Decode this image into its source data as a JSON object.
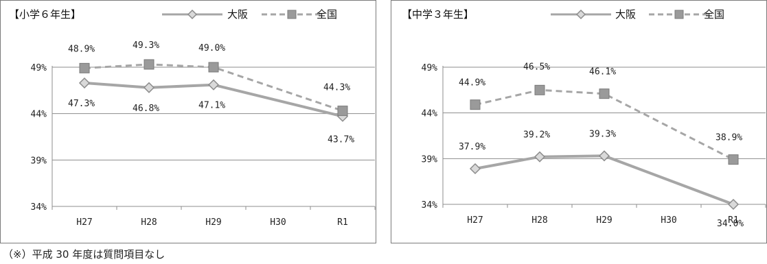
{
  "chart_data": [
    {
      "type": "line",
      "title": "【小学６年生】",
      "categories": [
        "H27",
        "H28",
        "H29",
        "H30",
        "R1"
      ],
      "yticks": [
        "49%",
        "44%",
        "39%",
        "34%"
      ],
      "ylim": [
        34,
        49
      ],
      "grid": true,
      "legend_position": "top-right",
      "series": [
        {
          "name": "大阪",
          "color": "#a6a6a6",
          "dash": "solid",
          "marker": "diamond",
          "values": [
            47.3,
            46.8,
            47.1,
            null,
            43.7
          ],
          "labels": [
            "47.3%",
            "46.8%",
            "47.1%",
            "",
            "43.7%"
          ]
        },
        {
          "name": "全国",
          "color": "#a6a6a6",
          "dash": "dashed",
          "marker": "square",
          "values": [
            48.9,
            49.3,
            49.0,
            null,
            44.3
          ],
          "labels": [
            "48.9%",
            "49.3%",
            "49.0%",
            "",
            "44.3%"
          ]
        }
      ]
    },
    {
      "type": "line",
      "title": "【中学３年生】",
      "categories": [
        "H27",
        "H28",
        "H29",
        "H30",
        "R1"
      ],
      "yticks": [
        "49%",
        "44%",
        "39%",
        "34%"
      ],
      "ylim": [
        34,
        49
      ],
      "grid": true,
      "legend_position": "top-right",
      "series": [
        {
          "name": "大阪",
          "color": "#a6a6a6",
          "dash": "solid",
          "marker": "diamond",
          "values": [
            37.9,
            39.2,
            39.3,
            null,
            34.0
          ],
          "labels": [
            "37.9%",
            "39.2%",
            "39.3%",
            "",
            "34.0%"
          ]
        },
        {
          "name": "全国",
          "color": "#a6a6a6",
          "dash": "dashed",
          "marker": "square",
          "values": [
            44.9,
            46.5,
            46.1,
            null,
            38.9
          ],
          "labels": [
            "44.9%",
            "46.5%",
            "46.1%",
            "",
            "38.9%"
          ]
        }
      ]
    }
  ],
  "footnote": "（※）平成 30 年度は質問項目なし"
}
